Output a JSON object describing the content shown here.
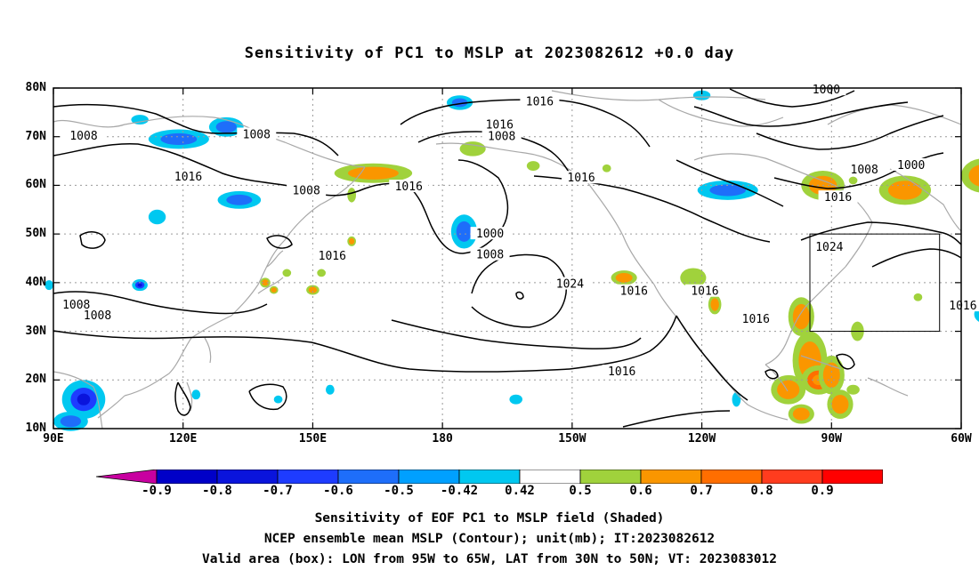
{
  "title": "Sensitivity of PC1 to MSLP at 2023082612 +0.0 day",
  "lat_labels": [
    "80N",
    "70N",
    "60N",
    "50N",
    "40N",
    "30N",
    "20N",
    "10N"
  ],
  "lon_labels": [
    "90E",
    "120E",
    "150E",
    "180",
    "150W",
    "120W",
    "90W",
    "60W"
  ],
  "contour_labels": [
    {
      "text": "1016",
      "lon": -157.5,
      "lat": 77.2
    },
    {
      "text": "1000",
      "lon": -91.2,
      "lat": 79.6
    },
    {
      "text": "1008",
      "lon": 97.0,
      "lat": 70.1
    },
    {
      "text": "1008",
      "lon": 137.0,
      "lat": 70.4
    },
    {
      "text": "1016",
      "lon": -166.8,
      "lat": 72.4
    },
    {
      "text": "1008",
      "lon": -166.3,
      "lat": 70.0
    },
    {
      "text": "1016",
      "lon": 121.2,
      "lat": 61.7
    },
    {
      "text": "1008",
      "lon": 148.5,
      "lat": 58.9
    },
    {
      "text": "1016",
      "lon": 172.2,
      "lat": 59.7
    },
    {
      "text": "1016",
      "lon": -147.9,
      "lat": 61.5
    },
    {
      "text": "1008",
      "lon": -82.4,
      "lat": 63.2
    },
    {
      "text": "1000",
      "lon": -71.6,
      "lat": 64.1
    },
    {
      "text": "1016",
      "lon": -88.5,
      "lat": 57.5
    },
    {
      "text": "1000",
      "lon": -169.0,
      "lat": 50.0
    },
    {
      "text": "1008",
      "lon": -169.0,
      "lat": 45.7
    },
    {
      "text": "1016",
      "lon": 154.5,
      "lat": 45.5
    },
    {
      "text": "1024",
      "lon": -90.5,
      "lat": 47.3
    },
    {
      "text": "1024",
      "lon": -150.5,
      "lat": 39.7
    },
    {
      "text": "1016",
      "lon": -135.7,
      "lat": 38.2
    },
    {
      "text": "1016",
      "lon": -119.3,
      "lat": 38.2
    },
    {
      "text": "1016",
      "lon": -59.6,
      "lat": 35.2
    },
    {
      "text": "1008",
      "lon": 95.3,
      "lat": 35.4
    },
    {
      "text": "1008",
      "lon": 100.2,
      "lat": 33.2
    },
    {
      "text": "1016",
      "lon": -107.5,
      "lat": 32.5
    },
    {
      "text": "1016",
      "lon": -138.5,
      "lat": 21.7
    }
  ],
  "valid_box": {
    "lon_min": -95,
    "lon_max": -65,
    "lat_min": 30,
    "lat_max": 50
  },
  "colorbar": {
    "labels": [
      "-0.9",
      "-0.8",
      "-0.7",
      "-0.6",
      "-0.5",
      "-0.42",
      "0.42",
      "0.5",
      "0.6",
      "0.7",
      "0.8",
      "0.9"
    ],
    "colors": [
      "#c800a0",
      "#0000c8",
      "#0a14dc",
      "#1e3cff",
      "#1e6efa",
      "#00a0ff",
      "#00c8f0",
      "#ffffff",
      "#a0d23c",
      "#fa9600",
      "#ff6e00",
      "#ff3c1e",
      "#ff0000",
      "#ff9ac8"
    ]
  },
  "shading": {
    "positive": [
      {
        "lon": 164,
        "lat": 62.5,
        "rx": 9,
        "ry": 2,
        "level": 0.6
      },
      {
        "lon": -173,
        "lat": 67.5,
        "rx": 3,
        "ry": 1.5,
        "level": 0.5
      },
      {
        "lon": -159,
        "lat": 64,
        "rx": 1.5,
        "ry": 1,
        "level": 0.5
      },
      {
        "lon": -92,
        "lat": 60,
        "rx": 5,
        "ry": 3,
        "level": 0.6
      },
      {
        "lon": -73,
        "lat": 59,
        "rx": 6,
        "ry": 3,
        "level": 0.6
      },
      {
        "lon": -55,
        "lat": 62,
        "rx": 5,
        "ry": 3.5,
        "level": 0.6
      },
      {
        "lon": -82,
        "lat": 63.5,
        "rx": 1.5,
        "ry": 1,
        "level": 0.5
      },
      {
        "lon": -138,
        "lat": 41,
        "rx": 3,
        "ry": 1.5,
        "level": 0.6
      },
      {
        "lon": -122,
        "lat": 41,
        "rx": 3,
        "ry": 2,
        "level": 0.5
      },
      {
        "lon": -117,
        "lat": 35.5,
        "rx": 1.5,
        "ry": 2,
        "level": 0.6
      },
      {
        "lon": -97,
        "lat": 33,
        "rx": 3,
        "ry": 4,
        "level": 0.6
      },
      {
        "lon": -95,
        "lat": 24,
        "rx": 4,
        "ry": 6,
        "level": 0.6
      },
      {
        "lon": -93,
        "lat": 20,
        "rx": 4,
        "ry": 3,
        "level": 0.7
      },
      {
        "lon": -100,
        "lat": 18,
        "rx": 4,
        "ry": 3,
        "level": 0.6
      },
      {
        "lon": -97,
        "lat": 13,
        "rx": 3,
        "ry": 2,
        "level": 0.6
      },
      {
        "lon": -90,
        "lat": 21,
        "rx": 3,
        "ry": 4,
        "level": 0.6
      },
      {
        "lon": -88,
        "lat": 15,
        "rx": 3,
        "ry": 3,
        "level": 0.6
      },
      {
        "lon": -84,
        "lat": 30,
        "rx": 1.5,
        "ry": 2,
        "level": 0.5
      },
      {
        "lon": -85,
        "lat": 18,
        "rx": 1.5,
        "ry": 1,
        "level": 0.5
      },
      {
        "lon": 139,
        "lat": 40,
        "rx": 1.2,
        "ry": 1,
        "level": 0.6
      },
      {
        "lon": 141,
        "lat": 38.5,
        "rx": 1,
        "ry": 0.8,
        "level": 0.6
      },
      {
        "lon": 144,
        "lat": 42,
        "rx": 1,
        "ry": 0.8,
        "level": 0.5
      },
      {
        "lon": 150,
        "lat": 38.5,
        "rx": 1.5,
        "ry": 1,
        "level": 0.6
      },
      {
        "lon": 152,
        "lat": 42,
        "rx": 1,
        "ry": 0.8,
        "level": 0.5
      },
      {
        "lon": 159,
        "lat": 48.5,
        "rx": 1,
        "ry": 1,
        "level": 0.6
      },
      {
        "lon": 159,
        "lat": 58,
        "rx": 1,
        "ry": 1.5,
        "level": 0.5
      },
      {
        "lon": -142,
        "lat": 63.5,
        "rx": 1,
        "ry": 0.8,
        "level": 0.5
      },
      {
        "lon": -70,
        "lat": 37,
        "rx": 1,
        "ry": 0.8,
        "level": 0.5
      },
      {
        "lon": -85,
        "lat": 61,
        "rx": 1,
        "ry": 0.8,
        "level": 0.5
      }
    ],
    "negative": [
      {
        "lon": -176,
        "lat": 77,
        "rx": 3,
        "ry": 1.5,
        "level": 0.6
      },
      {
        "lon": -120,
        "lat": 78.5,
        "rx": 2,
        "ry": 1,
        "level": 0.5
      },
      {
        "lon": 130,
        "lat": 72,
        "rx": 4,
        "ry": 2,
        "level": 0.6
      },
      {
        "lon": 119,
        "lat": 69.5,
        "rx": 7,
        "ry": 2,
        "level": 0.6
      },
      {
        "lon": 110,
        "lat": 73.5,
        "rx": 2,
        "ry": 1,
        "level": 0.5
      },
      {
        "lon": 133,
        "lat": 57,
        "rx": 5,
        "ry": 1.8,
        "level": 0.6
      },
      {
        "lon": 114,
        "lat": 53.5,
        "rx": 2,
        "ry": 1.5,
        "level": 0.5
      },
      {
        "lon": 110,
        "lat": 39.5,
        "rx": 1.8,
        "ry": 1.2,
        "level": 0.7
      },
      {
        "lon": -175,
        "lat": 50.5,
        "rx": 3,
        "ry": 3.5,
        "level": 0.6
      },
      {
        "lon": -114,
        "lat": 59,
        "rx": 7,
        "ry": 2,
        "level": 0.6
      },
      {
        "lon": -54,
        "lat": 33.5,
        "rx": 3,
        "ry": 2,
        "level": 0.6
      },
      {
        "lon": 97,
        "lat": 16,
        "rx": 5,
        "ry": 4,
        "level": 0.7
      },
      {
        "lon": 94,
        "lat": 11.5,
        "rx": 4,
        "ry": 2,
        "level": 0.6
      },
      {
        "lon": 123,
        "lat": 17,
        "rx": 1,
        "ry": 1,
        "level": 0.5
      },
      {
        "lon": 154,
        "lat": 18,
        "rx": 1,
        "ry": 1,
        "level": 0.5
      },
      {
        "lon": -163,
        "lat": 16,
        "rx": 1.5,
        "ry": 1,
        "level": 0.5
      },
      {
        "lon": -112,
        "lat": 16,
        "rx": 1,
        "ry": 1.5,
        "level": 0.5
      },
      {
        "lon": 142,
        "lat": 16,
        "rx": 1,
        "ry": 0.8,
        "level": 0.5
      },
      {
        "lon": 89,
        "lat": 39.5,
        "rx": 1,
        "ry": 1,
        "level": 0.5
      }
    ]
  },
  "captions": [
    "Sensitivity of EOF PC1 to MSLP field (Shaded)",
    "NCEP ensemble mean MSLP (Contour); unit(mb); IT:2023082612",
    "Valid area (box): LON from 95W to 65W, LAT from 30N to 50N; VT: 2023083012"
  ]
}
